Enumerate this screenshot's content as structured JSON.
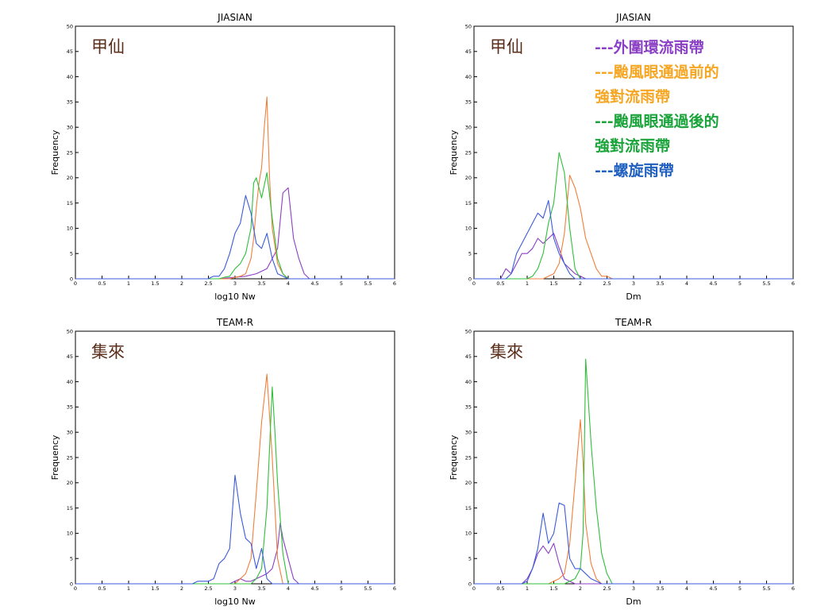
{
  "series_colors": {
    "outer": "#8a3fc4",
    "pre_eye": "#f07f3c",
    "post_eye": "#2fbf3a",
    "spiral": "#3b5bdb",
    "station_label": "#5a2d1a"
  },
  "legend": {
    "entries": [
      {
        "lines": [
          "---外圍環流雨帶"
        ],
        "color": "#8a3fc4"
      },
      {
        "lines": [
          "---颱風眼通過前的",
          "強對流雨帶"
        ],
        "color": "#f5a623"
      },
      {
        "lines": [
          "---颱風眼通過後的",
          "強對流雨帶"
        ],
        "color": "#1aa33a"
      },
      {
        "lines": [
          "---螺旋雨帶"
        ],
        "color": "#1f5fbf"
      }
    ]
  },
  "chart_data": [
    {
      "type": "line",
      "title": "JIASIAN",
      "station": "甲仙",
      "xlabel": "log10 Nw",
      "ylabel": "Frequency",
      "xlim": [
        0,
        6
      ],
      "ylim": [
        0,
        50
      ],
      "xticks": [
        "0",
        "0.5",
        "1",
        "1.5",
        "2",
        "2.5",
        "3",
        "3.5",
        "4",
        "4.5",
        "5",
        "5.5",
        "6"
      ],
      "yticks": [
        "0",
        "5",
        "10",
        "15",
        "20",
        "25",
        "30",
        "35",
        "40",
        "45",
        "50"
      ],
      "series": [
        {
          "key": "outer",
          "color": "#8a3fc4",
          "x": [
            0,
            2.7,
            3.0,
            3.2,
            3.4,
            3.6,
            3.7,
            3.8,
            3.9,
            4.0,
            4.1,
            4.2,
            4.3,
            4.4,
            6
          ],
          "y": [
            0,
            0,
            0.3,
            0.5,
            1,
            2,
            4,
            6,
            17,
            18,
            8,
            4,
            1,
            0,
            0
          ]
        },
        {
          "key": "pre_eye",
          "color": "#f07f3c",
          "x": [
            0,
            2.9,
            3.0,
            3.1,
            3.2,
            3.3,
            3.35,
            3.4,
            3.45,
            3.5,
            3.55,
            3.6,
            3.65,
            3.7,
            3.8,
            3.9,
            4.0,
            6
          ],
          "y": [
            0,
            0,
            0.3,
            0.5,
            1,
            4,
            8,
            14,
            19,
            22,
            30,
            36,
            20,
            10,
            3,
            1,
            0,
            0
          ]
        },
        {
          "key": "post_eye",
          "color": "#2fbf3a",
          "x": [
            0,
            2.7,
            2.8,
            2.9,
            3.0,
            3.1,
            3.2,
            3.3,
            3.35,
            3.4,
            3.5,
            3.6,
            3.7,
            3.8,
            3.9,
            4.0,
            6
          ],
          "y": [
            0,
            0,
            0.3,
            0.5,
            2,
            3,
            5,
            10,
            19,
            20,
            16,
            21,
            12,
            4,
            1,
            0,
            0
          ]
        },
        {
          "key": "spiral",
          "color": "#3b5bdb",
          "x": [
            0,
            2.5,
            2.55,
            2.6,
            2.7,
            2.8,
            2.9,
            3.0,
            3.1,
            3.2,
            3.3,
            3.4,
            3.5,
            3.6,
            3.7,
            3.8,
            3.9,
            4.0,
            6
          ],
          "y": [
            0,
            0,
            0.3,
            0.5,
            0.5,
            2,
            5,
            9,
            11,
            16.5,
            13,
            7,
            6,
            9,
            4,
            1,
            0.5,
            0,
            0
          ]
        }
      ]
    },
    {
      "type": "line",
      "title": "JIASIAN",
      "station": "甲仙",
      "xlabel": "Dm",
      "ylabel": "Frequency",
      "xlim": [
        0,
        6
      ],
      "ylim": [
        0,
        50
      ],
      "xticks": [
        "0",
        "0.5",
        "1",
        "1.5",
        "2",
        "2.5",
        "3",
        "3.5",
        "4",
        "4.5",
        "5",
        "5.5",
        "6"
      ],
      "yticks": [
        "0",
        "5",
        "10",
        "15",
        "20",
        "25",
        "30",
        "35",
        "40",
        "45",
        "50"
      ],
      "series": [
        {
          "key": "outer",
          "color": "#8a3fc4",
          "x": [
            0,
            0.5,
            0.6,
            0.7,
            0.8,
            0.9,
            1.0,
            1.1,
            1.2,
            1.3,
            1.4,
            1.5,
            1.6,
            1.7,
            1.8,
            1.9,
            2.0,
            2.1,
            6
          ],
          "y": [
            0,
            0,
            2,
            1,
            3,
            5,
            5,
            6,
            8,
            7,
            8,
            9,
            6,
            3,
            2,
            1,
            0.5,
            0,
            0
          ]
        },
        {
          "key": "pre_eye",
          "color": "#f07f3c",
          "x": [
            0,
            1.3,
            1.4,
            1.5,
            1.6,
            1.7,
            1.8,
            1.9,
            2.0,
            2.1,
            2.2,
            2.3,
            2.4,
            2.5,
            2.6,
            6
          ],
          "y": [
            0,
            0,
            0.5,
            1,
            3,
            9,
            20.5,
            18,
            14,
            8,
            5,
            2,
            0.5,
            0.5,
            0,
            0
          ]
        },
        {
          "key": "post_eye",
          "color": "#2fbf3a",
          "x": [
            0,
            1.0,
            1.1,
            1.2,
            1.3,
            1.4,
            1.5,
            1.6,
            1.7,
            1.8,
            1.9,
            2.0,
            6
          ],
          "y": [
            0,
            0,
            0.5,
            2,
            5,
            11,
            15,
            25,
            21,
            10,
            2,
            0,
            0
          ]
        },
        {
          "key": "spiral",
          "color": "#3b5bdb",
          "x": [
            0,
            0.6,
            0.7,
            0.8,
            0.9,
            1.0,
            1.1,
            1.2,
            1.3,
            1.4,
            1.5,
            1.6,
            1.7,
            1.8,
            1.9,
            2.0,
            6
          ],
          "y": [
            0,
            0,
            1,
            5,
            7,
            9,
            11,
            13,
            12,
            15.5,
            8,
            5,
            3,
            1,
            0,
            0,
            0
          ]
        }
      ]
    },
    {
      "type": "line",
      "title": "TEAM-R",
      "station": "集來",
      "xlabel": "log10 Nw",
      "ylabel": "Frequency",
      "xlim": [
        0,
        6
      ],
      "ylim": [
        0,
        50
      ],
      "xticks": [
        "0",
        "0.5",
        "1",
        "1.5",
        "2",
        "2.5",
        "3",
        "3.5",
        "4",
        "4.5",
        "5",
        "5.5",
        "6"
      ],
      "yticks": [
        "0",
        "5",
        "10",
        "15",
        "20",
        "25",
        "30",
        "35",
        "40",
        "45",
        "50"
      ],
      "series": [
        {
          "key": "outer",
          "color": "#8a3fc4",
          "x": [
            0,
            2.9,
            3.0,
            3.1,
            3.2,
            3.3,
            3.4,
            3.5,
            3.6,
            3.7,
            3.8,
            3.85,
            3.9,
            4.0,
            4.1,
            4.2,
            6
          ],
          "y": [
            0,
            0,
            0.5,
            1,
            0.5,
            0.5,
            1,
            1.5,
            2,
            3,
            7,
            12,
            9,
            5,
            1,
            0,
            0
          ]
        },
        {
          "key": "pre_eye",
          "color": "#f07f3c",
          "x": [
            0,
            3.0,
            3.1,
            3.2,
            3.3,
            3.4,
            3.5,
            3.6,
            3.7,
            3.8,
            3.9,
            6
          ],
          "y": [
            0,
            0,
            1,
            2,
            5,
            18,
            32,
            41.5,
            25,
            5,
            0,
            0
          ]
        },
        {
          "key": "post_eye",
          "color": "#2fbf3a",
          "x": [
            0,
            3.3,
            3.4,
            3.5,
            3.6,
            3.7,
            3.75,
            3.8,
            3.9,
            4.0,
            6
          ],
          "y": [
            0,
            0,
            1,
            3,
            15,
            39,
            30,
            20,
            6,
            0,
            0
          ]
        },
        {
          "key": "spiral",
          "color": "#3b5bdb",
          "x": [
            0,
            2.2,
            2.3,
            2.4,
            2.5,
            2.6,
            2.7,
            2.8,
            2.9,
            3.0,
            3.1,
            3.2,
            3.3,
            3.4,
            3.5,
            3.6,
            3.7,
            6
          ],
          "y": [
            0,
            0,
            0.5,
            0.5,
            0.5,
            1,
            4,
            5,
            7,
            21.5,
            14,
            9,
            8,
            3,
            7,
            1,
            0,
            0
          ]
        }
      ]
    },
    {
      "type": "line",
      "title": "TEAM-R",
      "station": "集來",
      "xlabel": "Dm",
      "ylabel": "Frequency",
      "xlim": [
        0,
        6
      ],
      "ylim": [
        0,
        50
      ],
      "xticks": [
        "0",
        "0.5",
        "1",
        "1.5",
        "2",
        "2.5",
        "3",
        "3.5",
        "4",
        "4.5",
        "5",
        "5.5",
        "6"
      ],
      "yticks": [
        "0",
        "5",
        "10",
        "15",
        "20",
        "25",
        "30",
        "35",
        "40",
        "45",
        "50"
      ],
      "series": [
        {
          "key": "outer",
          "color": "#8a3fc4",
          "x": [
            0,
            0.9,
            1.0,
            1.1,
            1.2,
            1.3,
            1.4,
            1.5,
            1.6,
            1.7,
            1.8,
            1.9,
            2.0,
            6
          ],
          "y": [
            0,
            0,
            1,
            3,
            6,
            7.5,
            6,
            8,
            4,
            1,
            0.5,
            0,
            0,
            0
          ]
        },
        {
          "key": "pre_eye",
          "color": "#f07f3c",
          "x": [
            0,
            1.4,
            1.5,
            1.6,
            1.7,
            1.8,
            1.9,
            2.0,
            2.05,
            2.1,
            2.2,
            2.3,
            2.4,
            6
          ],
          "y": [
            0,
            0,
            0.5,
            1,
            2,
            8,
            20,
            32.5,
            24,
            12,
            4,
            1,
            0,
            0
          ]
        },
        {
          "key": "post_eye",
          "color": "#2fbf3a",
          "x": [
            0,
            1.7,
            1.8,
            1.9,
            2.0,
            2.05,
            2.1,
            2.2,
            2.3,
            2.4,
            2.5,
            2.6,
            6
          ],
          "y": [
            0,
            0,
            0.5,
            1,
            3,
            10,
            44.5,
            28,
            15,
            6,
            2,
            0,
            0
          ]
        },
        {
          "key": "spiral",
          "color": "#3b5bdb",
          "x": [
            0,
            0.9,
            1.0,
            1.1,
            1.2,
            1.3,
            1.4,
            1.5,
            1.6,
            1.7,
            1.8,
            1.9,
            2.0,
            2.1,
            2.2,
            2.3,
            2.4,
            6
          ],
          "y": [
            0,
            0,
            0.5,
            3,
            7,
            14,
            8,
            10,
            16,
            15.5,
            5,
            3,
            3,
            2,
            1,
            0.5,
            0,
            0
          ]
        }
      ]
    }
  ]
}
